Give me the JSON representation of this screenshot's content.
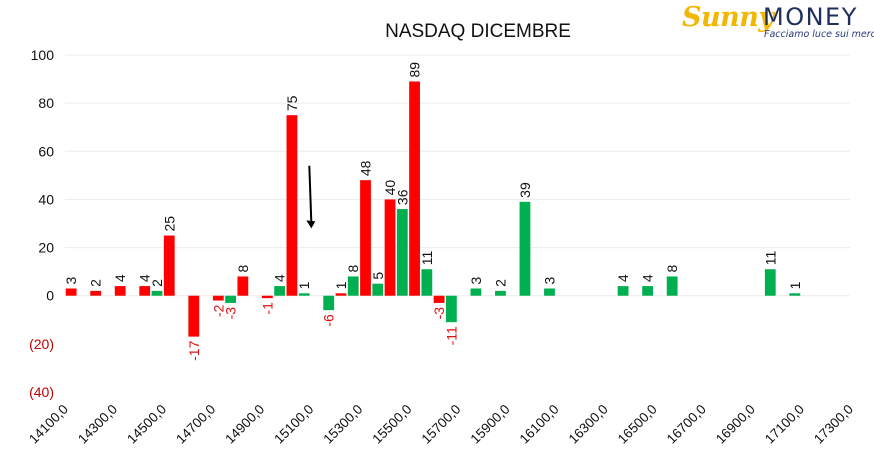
{
  "brand": {
    "sunny": "Sunny",
    "money": "MONEY",
    "tagline": "Facciamo luce sui mercati"
  },
  "chart_data": {
    "type": "bar",
    "title": "NASDAQ DICEMBRE",
    "xlabel": "",
    "ylabel": "",
    "ylim": [
      -40,
      100
    ],
    "yticks": [
      100,
      80,
      60,
      40,
      20,
      0,
      -20,
      -40
    ],
    "ytick_labels": [
      "100",
      "80",
      "60",
      "40",
      "20",
      "0",
      "(20)",
      "(40)"
    ],
    "xlim": [
      14100,
      17300
    ],
    "xticks": [
      14100,
      14300,
      14500,
      14700,
      14900,
      15100,
      15300,
      15500,
      15700,
      15900,
      16100,
      16300,
      16500,
      16700,
      16900,
      17100,
      17300
    ],
    "xtick_labels": [
      "14100,0",
      "14300,0",
      "14500,0",
      "14700,0",
      "14900,0",
      "15100,0",
      "15300,0",
      "15500,0",
      "15700,0",
      "15900,0",
      "16100,0",
      "16300,0",
      "16500,0",
      "16700,0",
      "16900,0",
      "17100,0",
      "17300,0"
    ],
    "bar_width_units": 44,
    "grid": true,
    "series": [
      {
        "color": "#ff0000",
        "points": [
          {
            "x": 14125,
            "y": 3
          },
          {
            "x": 14225,
            "y": 2
          },
          {
            "x": 14325,
            "y": 4
          },
          {
            "x": 14425,
            "y": 4
          },
          {
            "x": 14525,
            "y": 25
          },
          {
            "x": 14625,
            "y": -17
          },
          {
            "x": 14725,
            "y": -2
          },
          {
            "x": 14825,
            "y": 8
          },
          {
            "x": 14925,
            "y": -1
          },
          {
            "x": 15025,
            "y": 75
          },
          {
            "x": 15225,
            "y": 1
          },
          {
            "x": 15325,
            "y": 48
          },
          {
            "x": 15425,
            "y": 40
          },
          {
            "x": 15525,
            "y": 89
          },
          {
            "x": 15625,
            "y": -3
          }
        ]
      },
      {
        "color": "#00b050",
        "points": [
          {
            "x": 14475,
            "y": 2
          },
          {
            "x": 14775,
            "y": -3
          },
          {
            "x": 14975,
            "y": 4
          },
          {
            "x": 15075,
            "y": 1
          },
          {
            "x": 15175,
            "y": -6
          },
          {
            "x": 15275,
            "y": 8
          },
          {
            "x": 15375,
            "y": 5
          },
          {
            "x": 15475,
            "y": 36
          },
          {
            "x": 15575,
            "y": 11
          },
          {
            "x": 15675,
            "y": -11
          },
          {
            "x": 15775,
            "y": 3
          },
          {
            "x": 15875,
            "y": 2
          },
          {
            "x": 15975,
            "y": 39
          },
          {
            "x": 16075,
            "y": 3
          },
          {
            "x": 16375,
            "y": 4
          },
          {
            "x": 16475,
            "y": 4
          },
          {
            "x": 16575,
            "y": 8
          },
          {
            "x": 16975,
            "y": 11
          },
          {
            "x": 17075,
            "y": 1
          }
        ]
      }
    ],
    "annotations": [
      {
        "type": "arrow",
        "from": [
          15100,
          54
        ],
        "to": [
          15100,
          28
        ],
        "color": "#000000"
      }
    ]
  }
}
